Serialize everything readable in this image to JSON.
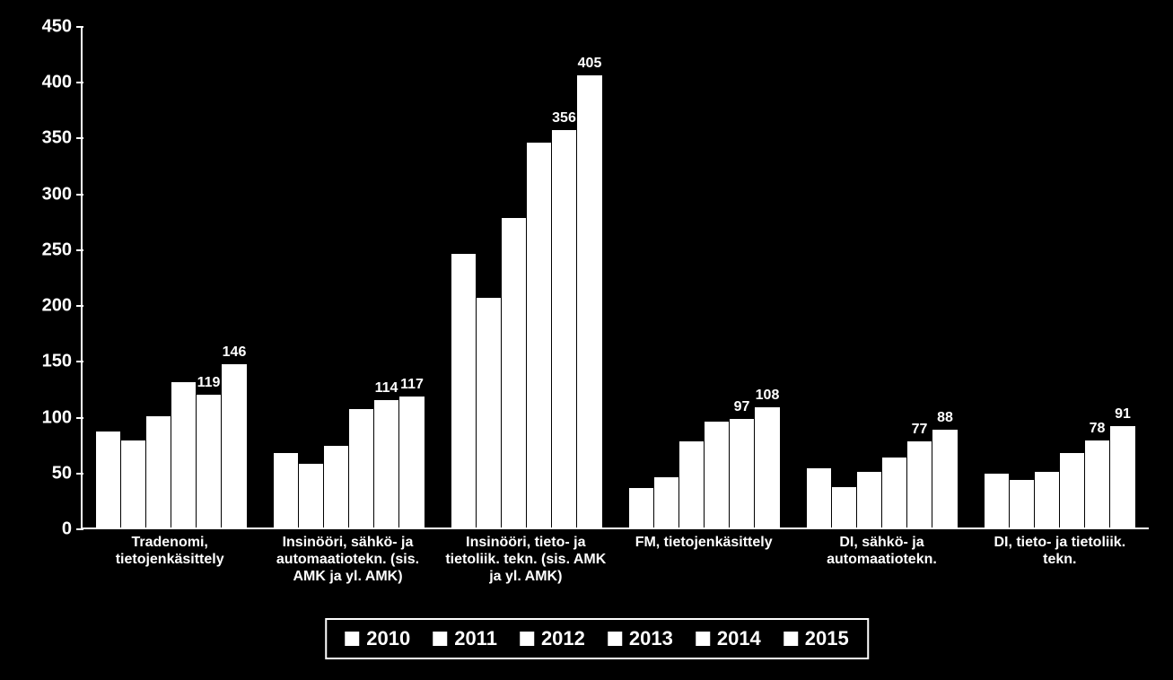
{
  "chart": {
    "type": "bar",
    "background_color": "#000000",
    "bar_color": "#ffffff",
    "text_color": "#ffffff",
    "axis_color": "#ffffff",
    "ylim": [
      0,
      450
    ],
    "ytick_step": 50,
    "yticks": [
      0,
      50,
      100,
      150,
      200,
      250,
      300,
      350,
      400,
      450
    ],
    "title_fontsize": 20,
    "label_fontsize": 16,
    "legend_fontsize": 22,
    "categories": [
      {
        "label": "Tradenomi, tietojenkäsittely",
        "values": [
          86,
          78,
          100,
          130,
          119,
          146
        ],
        "show_labels": [
          null,
          null,
          null,
          null,
          "119",
          "146"
        ]
      },
      {
        "label": "Insinööri, sähkö- ja automaatiotekn. (sis. AMK ja yl. AMK)",
        "values": [
          67,
          57,
          73,
          106,
          114,
          117
        ],
        "show_labels": [
          null,
          null,
          null,
          null,
          "114",
          "117"
        ]
      },
      {
        "label": "Insinööri, tieto- ja tietoliik. tekn. (sis. AMK ja yl. AMK)",
        "values": [
          245,
          206,
          277,
          345,
          356,
          405
        ],
        "show_labels": [
          null,
          null,
          null,
          null,
          "356",
          "405"
        ]
      },
      {
        "label": "FM, tietojenkäsittely",
        "values": [
          35,
          45,
          77,
          95,
          97,
          108
        ],
        "show_labels": [
          null,
          null,
          null,
          null,
          "97",
          "108"
        ]
      },
      {
        "label": "DI, sähkö- ja automaatiotekn.",
        "values": [
          53,
          36,
          50,
          63,
          77,
          88
        ],
        "show_labels": [
          null,
          null,
          null,
          null,
          "77",
          "88"
        ]
      },
      {
        "label": "DI, tieto- ja tietoliik. tekn.",
        "values": [
          48,
          43,
          50,
          67,
          78,
          91
        ],
        "show_labels": [
          null,
          null,
          null,
          null,
          "78",
          "91"
        ]
      }
    ],
    "legend_items": [
      "2010",
      "2011",
      "2012",
      "2013",
      "2014",
      "2015"
    ]
  }
}
